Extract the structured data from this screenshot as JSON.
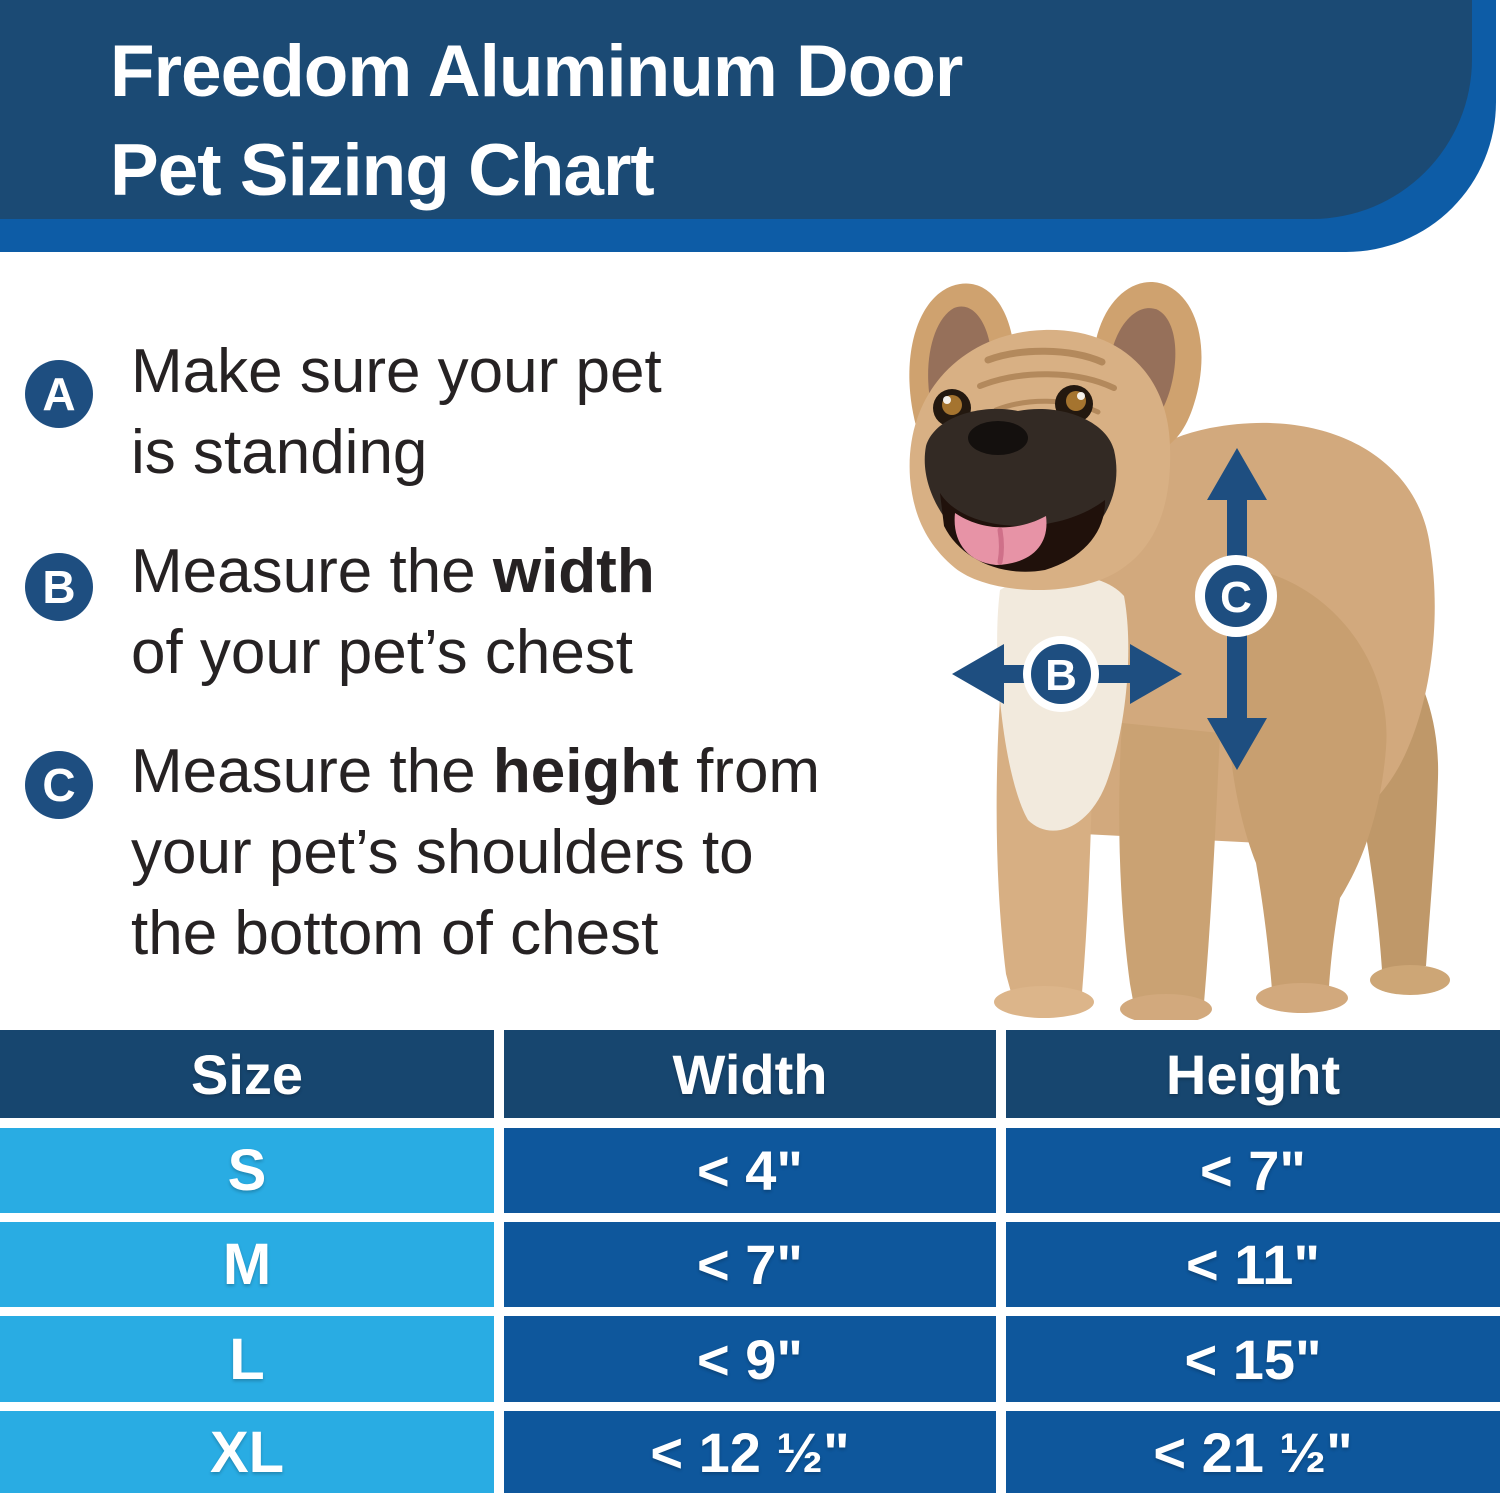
{
  "header": {
    "title_line1": "Freedom Aluminum Door",
    "title_line2": "Pet Sizing Chart",
    "bg_dark": "#1b4a74",
    "bg_accent": "#0d5ca6"
  },
  "instructions": [
    {
      "badge": "A",
      "lines": [
        [
          {
            "t": "Make sure your pet"
          }
        ],
        [
          {
            "t": "is standing"
          }
        ]
      ]
    },
    {
      "badge": "B",
      "lines": [
        [
          {
            "t": "Measure the "
          },
          {
            "t": "width",
            "b": true
          }
        ],
        [
          {
            "t": "of your pet’s chest"
          }
        ]
      ]
    },
    {
      "badge": "C",
      "lines": [
        [
          {
            "t": "Measure the "
          },
          {
            "t": "height",
            "b": true
          },
          {
            "t": " from"
          }
        ],
        [
          {
            "t": "your pet’s shoulders to"
          }
        ],
        [
          {
            "t": "the bottom of chest"
          }
        ]
      ]
    }
  ],
  "diagram": {
    "subject": "standing french bulldog photo",
    "width_label": "B",
    "height_label": "C",
    "arrow_color": "#1e4e80"
  },
  "table": {
    "columns": [
      "Size",
      "Width",
      "Height"
    ],
    "rows": [
      {
        "size": "S",
        "width": "< 4\"",
        "height": "< 7\""
      },
      {
        "size": "M",
        "width": "< 7\"",
        "height": "< 11\""
      },
      {
        "size": "L",
        "width": "< 9\"",
        "height": "< 15\""
      },
      {
        "size": "XL",
        "width": "< 12 ½\"",
        "height": "< 21 ½\""
      }
    ],
    "header_bg": "#17466f",
    "size_col_bg": "#29ace3",
    "value_col_bg": "#0e579c"
  },
  "chart_data": {
    "type": "table",
    "title": "Freedom Aluminum Door Pet Sizing Chart",
    "columns": [
      "Size",
      "Width",
      "Height"
    ],
    "rows": [
      [
        "S",
        "< 4\"",
        "< 7\""
      ],
      [
        "M",
        "< 7\"",
        "< 11\""
      ],
      [
        "L",
        "< 9\"",
        "< 15\""
      ],
      [
        "XL",
        "< 12 ½\"",
        "< 21 ½\""
      ]
    ]
  }
}
